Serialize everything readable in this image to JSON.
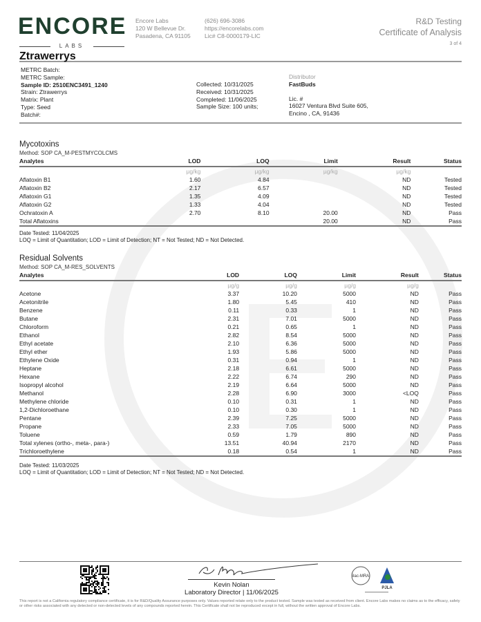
{
  "header": {
    "logo_text": "ENCORE",
    "logo_sub": "LABS",
    "lab_address": [
      "Encore Labs",
      "120 W Bellevue Dr.",
      "Pasadena, CA 91105"
    ],
    "lab_contact": [
      "(626) 696-3086",
      "https://encorelabs.com",
      "Lic# C8-0000179-LIC"
    ],
    "doc_type": "R&D Testing",
    "doc_title": "Certificate of Analysis",
    "page": "3 of 4"
  },
  "sample": {
    "name": "Ztrawerrys",
    "metrc_batch": "METRC Batch:",
    "metrc_sample": "METRC Sample:",
    "sample_id": "Sample ID: 2510ENC3491_1240",
    "strain": "Strain: Ztrawerrys",
    "matrix": "Matrix: Plant",
    "type": "Type: Seed",
    "batch": "Batch#:",
    "collected": "Collected: 10/31/2025",
    "received": "Received: 10/31/2025",
    "completed": "Completed: 11/06/2025",
    "sample_size": "Sample Size: 100 units;",
    "distributor_label": "Distributor",
    "distributor": "FastBuds",
    "lic": "Lic. #",
    "address1": "16027 Ventura Blvd Suite 605,",
    "address2": "Encino , CA, 91436"
  },
  "mycotoxins": {
    "title": "Mycotoxins",
    "method": "Method: SOP CA_M-PESTMYCOLCMS",
    "columns": [
      "Analytes",
      "LOD",
      "LOQ",
      "Limit",
      "Result",
      "Status"
    ],
    "units": [
      "",
      "µg/kg",
      "µg/kg",
      "µg/kg",
      "µg/kg",
      ""
    ],
    "rows": [
      [
        "Aflatoxin B1",
        "1.60",
        "4.84",
        "",
        "ND",
        "Tested"
      ],
      [
        "Aflatoxin B2",
        "2.17",
        "6.57",
        "",
        "ND",
        "Tested"
      ],
      [
        "Aflatoxin G1",
        "1.35",
        "4.09",
        "",
        "ND",
        "Tested"
      ],
      [
        "Aflatoxin G2",
        "1.33",
        "4.04",
        "",
        "ND",
        "Tested"
      ],
      [
        "Ochratoxin A",
        "2.70",
        "8.10",
        "20.00",
        "ND",
        "Pass"
      ],
      [
        "Total Aflatoxins",
        "",
        "",
        "20.00",
        "ND",
        "Pass"
      ]
    ],
    "date_tested": "Date Tested: 11/04/2025",
    "legend": "LOQ = Limit of Quantitation; LOD = Limit of Detection; NT = Not Tested; ND = Not Detected."
  },
  "solvents": {
    "title": "Residual Solvents",
    "method": "Method: SOP CA_M-RES_SOLVENTS",
    "columns": [
      "Analytes",
      "LOD",
      "LOQ",
      "Limit",
      "Result",
      "Status"
    ],
    "units": [
      "",
      "µg/g",
      "µg/g",
      "µg/g",
      "µg/g",
      ""
    ],
    "rows": [
      [
        "Acetone",
        "3.37",
        "10.20",
        "5000",
        "ND",
        "Pass"
      ],
      [
        "Acetonitrile",
        "1.80",
        "5.45",
        "410",
        "ND",
        "Pass"
      ],
      [
        "Benzene",
        "0.11",
        "0.33",
        "1",
        "ND",
        "Pass"
      ],
      [
        "Butane",
        "2.31",
        "7.01",
        "5000",
        "ND",
        "Pass"
      ],
      [
        "Chloroform",
        "0.21",
        "0.65",
        "1",
        "ND",
        "Pass"
      ],
      [
        "Ethanol",
        "2.82",
        "8.54",
        "5000",
        "ND",
        "Pass"
      ],
      [
        "Ethyl acetate",
        "2.10",
        "6.36",
        "5000",
        "ND",
        "Pass"
      ],
      [
        "Ethyl ether",
        "1.93",
        "5.86",
        "5000",
        "ND",
        "Pass"
      ],
      [
        "Ethylene Oxide",
        "0.31",
        "0.94",
        "1",
        "ND",
        "Pass"
      ],
      [
        "Heptane",
        "2.18",
        "6.61",
        "5000",
        "ND",
        "Pass"
      ],
      [
        "Hexane",
        "2.22",
        "6.74",
        "290",
        "ND",
        "Pass"
      ],
      [
        "Isopropyl alcohol",
        "2.19",
        "6.64",
        "5000",
        "ND",
        "Pass"
      ],
      [
        "Methanol",
        "2.28",
        "6.90",
        "3000",
        "<LOQ",
        "Pass"
      ],
      [
        "Methylene chloride",
        "0.10",
        "0.31",
        "1",
        "ND",
        "Pass"
      ],
      [
        "1,2-Dichloroethane",
        "0.10",
        "0.30",
        "1",
        "ND",
        "Pass"
      ],
      [
        "Pentane",
        "2.39",
        "7.25",
        "5000",
        "ND",
        "Pass"
      ],
      [
        "Propane",
        "2.33",
        "7.05",
        "5000",
        "ND",
        "Pass"
      ],
      [
        "Toluene",
        "0.59",
        "1.79",
        "890",
        "ND",
        "Pass"
      ],
      [
        "Total xylenes (ortho-, meta-, para-)",
        "13.51",
        "40.94",
        "2170",
        "ND",
        "Pass"
      ],
      [
        "Trichloroethylene",
        "0.18",
        "0.54",
        "1",
        "ND",
        "Pass"
      ]
    ],
    "date_tested": "Date Tested: 11/03/2025",
    "legend": "LOQ = Limit of Quantitation; LOD = Limit of Detection; NT = Not Tested; ND = Not Detected."
  },
  "footer": {
    "signature_text": "K Nolan",
    "signer": "Kevin Nolan",
    "signer_title": "Laboratory Director | 11/06/2025",
    "accreditation_logos": [
      "ilac-MRA",
      "PJLA"
    ],
    "disclaimer": "This report is not a California regulatory compliance certificate, it is for R&D/Quality Assurance purposes only. Values reported relate only to the product tested. Sample was tested as received from client. Encore Labs makes no claims as to the efficacy, safety or other risks associated with any detected or non-detected levels of any compounds reported herein. This Certificate shall not be reproduced except in full, without the written approval of Encore Labs."
  },
  "colors": {
    "brand": "#1f3f2e",
    "rule": "#9a9a9a"
  }
}
